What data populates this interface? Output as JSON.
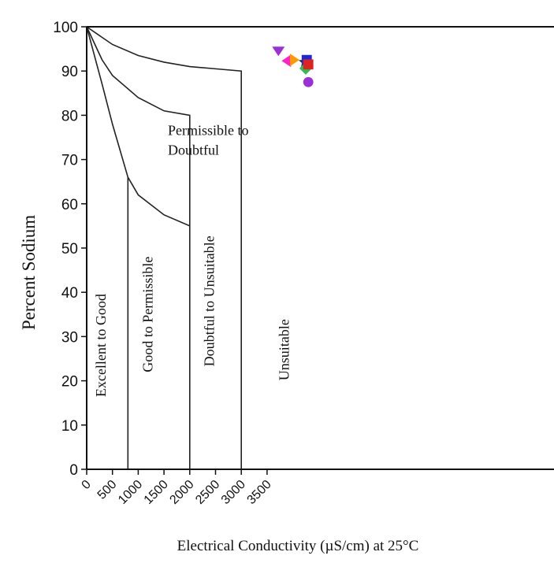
{
  "chart_data": {
    "type": "scatter",
    "xlabel": "Electrical Conductivity (µS/cm) at 25°C",
    "ylabel": "Percent Sodium",
    "xlim": [
      0,
      4500
    ],
    "ylim": [
      0,
      100
    ],
    "x_ticks": [
      "0",
      "500",
      "1000",
      "1500",
      "2000",
      "2500",
      "3000",
      "3500"
    ],
    "y_ticks": [
      "0",
      "10",
      "20",
      "30",
      "40",
      "50",
      "60",
      "70",
      "80",
      "90",
      "100"
    ],
    "grid": false,
    "zones": [
      {
        "label": "Excellent to Good"
      },
      {
        "label": "Good to Permissible"
      },
      {
        "label": "Permissible to Doubtful"
      },
      {
        "label": "Doubtful to Unsuitable"
      },
      {
        "label": "Unsuitable"
      }
    ],
    "boundaries": [
      {
        "points": [
          [
            0,
            100
          ],
          [
            300,
            87
          ],
          [
            500,
            78
          ],
          [
            800,
            66
          ],
          [
            1000,
            62
          ],
          [
            1500,
            57.5
          ],
          [
            2000,
            55
          ],
          [
            2000,
            0
          ]
        ]
      },
      {
        "points": [
          [
            800,
            66
          ],
          [
            800,
            0
          ]
        ]
      },
      {
        "points": [
          [
            0,
            100
          ],
          [
            300,
            92.5
          ],
          [
            500,
            89
          ],
          [
            1000,
            84
          ],
          [
            1500,
            81
          ],
          [
            2000,
            80
          ],
          [
            2000,
            55
          ]
        ]
      },
      {
        "points": [
          [
            0,
            100
          ],
          [
            500,
            96
          ],
          [
            1000,
            93.5
          ],
          [
            1500,
            92
          ],
          [
            2000,
            91
          ],
          [
            2500,
            90.5
          ],
          [
            3000,
            90
          ],
          [
            3000,
            0
          ]
        ]
      }
    ],
    "points": [
      {
        "x": 3720,
        "y": 94.5,
        "marker": "triangle-down",
        "color": "#9b30d9"
      },
      {
        "x": 3880,
        "y": 92.3,
        "marker": "triangle-left",
        "color": "#ff22cc"
      },
      {
        "x": 4030,
        "y": 92.5,
        "marker": "triangle-right",
        "color": "#ff9900"
      },
      {
        "x": 4230,
        "y": 92.0,
        "marker": "star",
        "color": "#222222"
      },
      {
        "x": 4270,
        "y": 92.5,
        "marker": "square",
        "color": "#1a2bd6"
      },
      {
        "x": 4250,
        "y": 90.6,
        "marker": "diamond",
        "color": "#33bb55"
      },
      {
        "x": 4300,
        "y": 91.5,
        "marker": "square",
        "color": "#dd2222"
      },
      {
        "x": 4300,
        "y": 87.5,
        "marker": "circle",
        "color": "#9b30d9"
      }
    ]
  }
}
